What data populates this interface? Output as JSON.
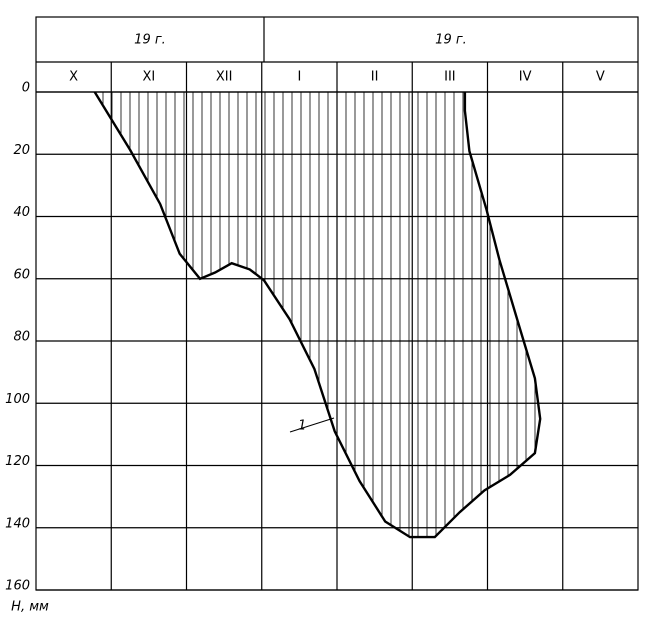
{
  "chart_data": {
    "type": "line",
    "period_labels": [
      "19 г.",
      "19 г."
    ],
    "categories": [
      "X",
      "XI",
      "XII",
      "I",
      "II",
      "III",
      "IV",
      "V"
    ],
    "ylabel": "H, мм",
    "annotation": "1",
    "ylim": [
      0,
      160
    ],
    "yticks": [
      0,
      20,
      40,
      60,
      80,
      100,
      120,
      140,
      160
    ],
    "y_inverted": true,
    "grid": true,
    "hatched": true,
    "color": "#000000",
    "xlim": [
      0,
      8
    ],
    "x": [
      0.78,
      1.25,
      1.65,
      1.91,
      2.18,
      2.38,
      2.6,
      2.84,
      3.03,
      3.37,
      3.7,
      3.97,
      4.3,
      4.64,
      4.97,
      5.3,
      5.63,
      5.96,
      6.3,
      6.63,
      6.7,
      6.63,
      6.43,
      6.16,
      5.99,
      5.76,
      5.7,
      5.7
    ],
    "values": [
      0,
      18.6,
      36,
      52,
      60,
      58,
      55,
      57,
      60.5,
      73,
      89,
      109,
      125,
      138,
      143,
      143,
      135,
      128,
      123,
      116,
      105,
      92,
      76,
      54,
      38,
      19,
      6,
      0
    ]
  }
}
